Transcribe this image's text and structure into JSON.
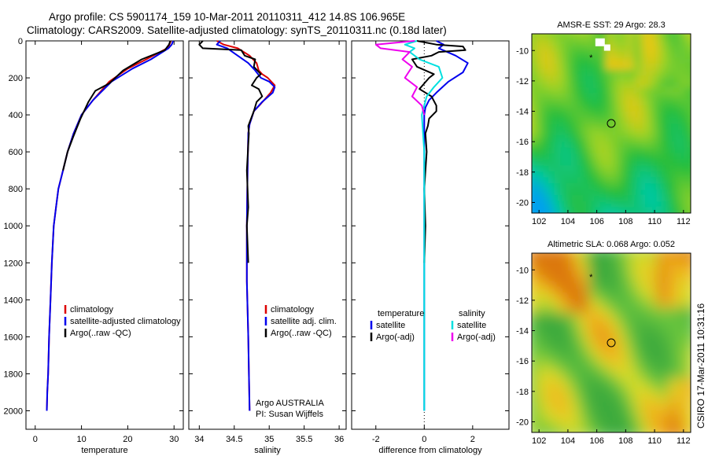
{
  "title_line1": "Argo profile: CS 5901174_159 10-Mar-2011 20110311_412 14.8S 106.965E",
  "title_line2": "Climatology: CARS2009. Satellite-adjusted climatology: synTS_20110311.nc (0.18d later)",
  "side_label": "CSIRO 17-Mar-2011 10:31:16",
  "colors": {
    "climatology": "#dd0000",
    "satellite": "#0000ee",
    "argo": "#000000",
    "cyan": "#00e0e0",
    "magenta": "#ee00ee"
  },
  "chart_data": [
    {
      "type": "line",
      "xlabel": "temperature",
      "xlim": [
        -2,
        32
      ],
      "ylim": [
        0,
        2100
      ],
      "y_reversed": true,
      "xticks": [
        0,
        10,
        20,
        30
      ],
      "yticks": [
        0,
        200,
        400,
        600,
        800,
        1000,
        1200,
        1400,
        1600,
        1800,
        2000
      ],
      "legend": [
        "climatology",
        "satellite-adjusted climatology",
        "Argo(..raw -QC)"
      ],
      "legend_placement": "lower-right",
      "series": [
        {
          "name": "climatology",
          "color": "climatology",
          "x": [
            29.3,
            29,
            28.5,
            24,
            20,
            16,
            12.5,
            10,
            8.3,
            7,
            6,
            5,
            4.5,
            4,
            3.6,
            3.3,
            3,
            2.8,
            2.6,
            2.5
          ],
          "y": [
            0,
            20,
            40,
            100,
            150,
            220,
            320,
            400,
            500,
            600,
            700,
            800,
            900,
            1000,
            1200,
            1400,
            1600,
            1800,
            1900,
            2000
          ]
        },
        {
          "name": "satellite-adjusted climatology",
          "color": "satellite",
          "x": [
            29.8,
            29.5,
            28.8,
            25,
            21,
            16.5,
            12.5,
            10,
            8.3,
            7,
            6,
            5,
            4.5,
            4,
            3.6,
            3.3,
            3,
            2.8,
            2.6,
            2.5
          ],
          "y": [
            0,
            20,
            40,
            100,
            150,
            220,
            320,
            400,
            500,
            600,
            700,
            800,
            900,
            1000,
            1200,
            1400,
            1600,
            1800,
            1900,
            2000
          ]
        },
        {
          "name": "Argo(..raw -QC)",
          "color": "argo",
          "x": [
            29.2,
            28.9,
            28,
            23,
            19,
            16,
            13,
            11.5,
            9.8,
            8.2,
            7,
            6
          ],
          "y": [
            0,
            20,
            50,
            100,
            160,
            230,
            270,
            330,
            420,
            520,
            600,
            700
          ]
        }
      ]
    },
    {
      "type": "line",
      "xlabel": "salinity",
      "xlim": [
        33.85,
        36.1
      ],
      "ylim": [
        0,
        2100
      ],
      "y_reversed": true,
      "xticks": [
        34,
        34.5,
        35,
        35.5,
        36
      ],
      "yticks": [],
      "legend": [
        "climatology",
        "satellite adj. clim.",
        "Argo(..raw -QC)"
      ],
      "legend_placement": "lower-right",
      "annotation": [
        "Argo AUSTRALIA",
        "PI: Susan Wijffels"
      ],
      "series": [
        {
          "name": "climatology",
          "color": "climatology",
          "x": [
            34.25,
            34.35,
            34.55,
            34.72,
            34.82,
            34.85,
            34.9,
            34.98,
            35.08,
            35.02,
            34.88,
            34.78,
            34.72,
            34.7,
            34.69,
            34.68,
            34.68,
            34.7,
            34.71,
            34.72
          ],
          "y": [
            0,
            20,
            40,
            80,
            120,
            160,
            180,
            200,
            240,
            280,
            340,
            380,
            450,
            500,
            700,
            1000,
            1300,
            1600,
            1800,
            2000
          ]
        },
        {
          "name": "satellite adj. clim.",
          "color": "satellite",
          "x": [
            34.3,
            34.25,
            34.4,
            34.55,
            34.7,
            34.8,
            34.88,
            35,
            35.08,
            35.05,
            34.9,
            34.78,
            34.72,
            34.7,
            34.69,
            34.68,
            34.68,
            34.7,
            34.71,
            34.72
          ],
          "y": [
            0,
            20,
            40,
            80,
            120,
            160,
            200,
            220,
            250,
            280,
            330,
            380,
            450,
            500,
            700,
            1000,
            1300,
            1600,
            1800,
            2000
          ]
        },
        {
          "name": "Argo(..raw -QC)",
          "color": "argo",
          "x": [
            34.05,
            34.0,
            34.05,
            34.6,
            34.65,
            34.8,
            34.78,
            34.88,
            34.82,
            34.75,
            34.85,
            34.9,
            34.82,
            34.78,
            34.74,
            34.7,
            34.71,
            34.68,
            34.7,
            34.68,
            34.69,
            34.7
          ],
          "y": [
            0,
            20,
            40,
            50,
            80,
            100,
            140,
            180,
            200,
            240,
            260,
            300,
            330,
            380,
            420,
            460,
            500,
            700,
            900,
            1000,
            1100,
            1200
          ]
        }
      ]
    },
    {
      "type": "line",
      "xlabel": "difference from climatology",
      "xlim": [
        -3,
        3.5
      ],
      "ylim": [
        0,
        2100
      ],
      "y_reversed": true,
      "xticks": [
        -2,
        0,
        2
      ],
      "yticks": [],
      "reference_line": 0,
      "legend": [
        "temperature",
        "satellite",
        "Argo(-adj)",
        "salinity",
        "satellite",
        "Argo(-adj)"
      ],
      "legend_placement": "lower-center",
      "series": [
        {
          "name": "temperature satellite",
          "color": "satellite",
          "x": [
            0.5,
            0.8,
            0.6,
            1.3,
            1.8,
            1.6,
            1.0,
            0.5,
            0.2,
            0.05,
            0.0,
            0.0,
            0.0,
            0.0,
            0.0,
            0.0
          ],
          "y": [
            0,
            20,
            40,
            80,
            120,
            170,
            220,
            280,
            320,
            360,
            400,
            600,
            1000,
            1400,
            1800,
            2000
          ]
        },
        {
          "name": "temperature Argo(-adj)",
          "color": "argo",
          "x": [
            -0.3,
            0.5,
            1.6,
            1.7,
            0.6,
            0.3,
            -0.5,
            -0.3,
            0.4,
            0.2,
            0.0,
            -0.2,
            0.3,
            0.5,
            0.5,
            0.2,
            0.15,
            0.05,
            0.1,
            0.0,
            0.05,
            0.0
          ],
          "y": [
            0,
            20,
            30,
            50,
            60,
            80,
            100,
            140,
            180,
            200,
            230,
            260,
            300,
            350,
            380,
            420,
            460,
            500,
            600,
            800,
            1000,
            1200
          ]
        },
        {
          "name": "salinity satellite",
          "color": "cyan",
          "x": [
            -0.3,
            -0.8,
            -0.4,
            -0.6,
            -0.2,
            0.6,
            0.75,
            0.4,
            0.1,
            0.0,
            -0.1,
            0.0,
            0.0,
            0.0,
            0.0
          ],
          "y": [
            0,
            20,
            40,
            60,
            100,
            140,
            200,
            250,
            300,
            350,
            400,
            600,
            1000,
            1600,
            2000
          ]
        },
        {
          "name": "salinity Argo(-adj)",
          "color": "magenta",
          "x": [
            -0.4,
            -2.0,
            -1.8,
            -0.6,
            -0.9,
            -0.5,
            -0.8,
            -0.3,
            -0.5,
            -0.1,
            0.0
          ],
          "y": [
            0,
            20,
            40,
            60,
            100,
            140,
            200,
            250,
            300,
            350,
            400
          ]
        }
      ]
    },
    {
      "type": "heatmap",
      "title": "AMSR-E SST: 29 Argo: 28.3",
      "xlim": [
        101.5,
        112.5
      ],
      "ylim": [
        -20.7,
        -8.9
      ],
      "xticks": [
        102,
        104,
        106,
        108,
        110,
        112
      ],
      "yticks": [
        -10,
        -12,
        -14,
        -16,
        -18,
        -20
      ],
      "marker_circle": [
        107,
        -14.8
      ],
      "marker_star": [
        105.6,
        -10.5
      ]
    },
    {
      "type": "heatmap",
      "title": "Altimetric SLA: 0.068 Argo: 0.052",
      "xlim": [
        101.5,
        112.5
      ],
      "ylim": [
        -20.7,
        -8.9
      ],
      "xticks": [
        102,
        104,
        106,
        108,
        110,
        112
      ],
      "yticks": [
        -10,
        -12,
        -14,
        -16,
        -18,
        -20
      ],
      "marker_circle": [
        107,
        -14.8
      ],
      "marker_star": [
        105.6,
        -10.5
      ]
    }
  ]
}
